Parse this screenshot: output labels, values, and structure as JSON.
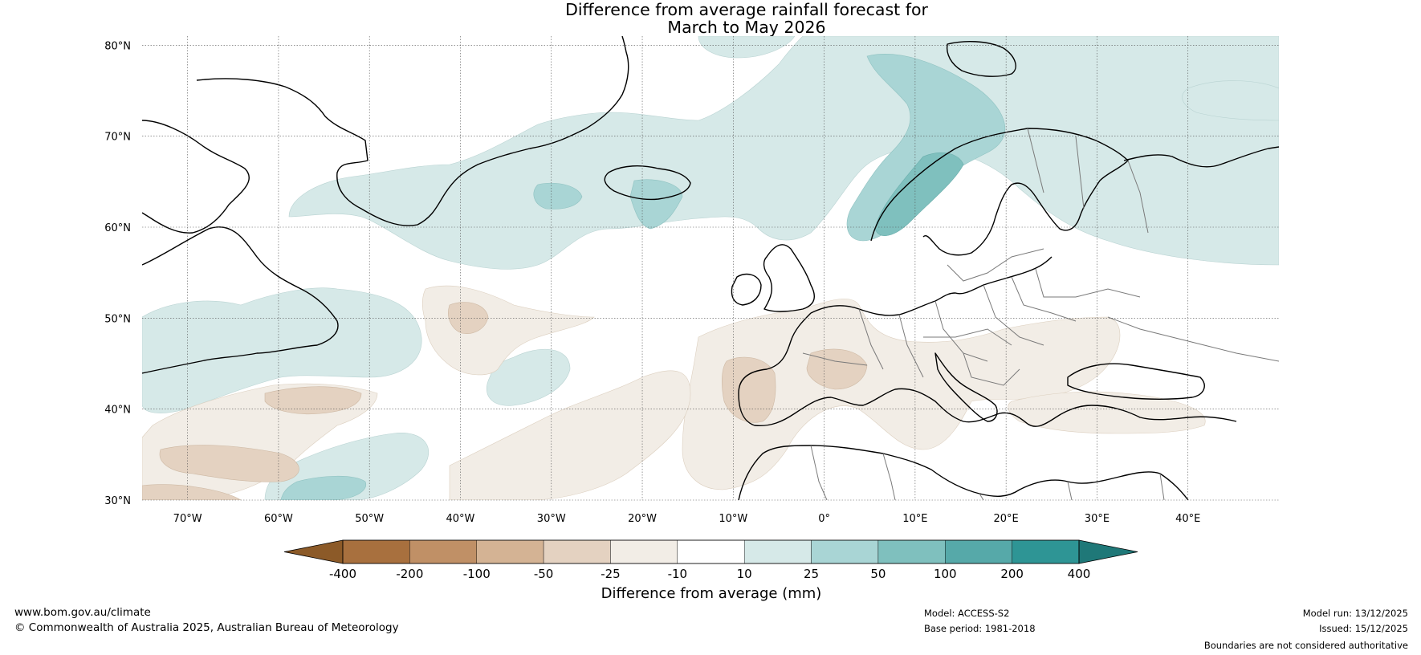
{
  "title": {
    "line1": "Difference from average rainfall forecast for",
    "line2": "March to May 2026"
  },
  "map": {
    "lat_labels": [
      "80°N",
      "70°N",
      "60°N",
      "50°N",
      "40°N",
      "30°N"
    ],
    "lon_labels": [
      "70°W",
      "60°W",
      "50°W",
      "40°W",
      "30°W",
      "20°W",
      "10°W",
      "0°",
      "10°E",
      "20°E",
      "30°E",
      "40°E"
    ],
    "lat_range": [
      30,
      81
    ],
    "lon_range": [
      -75,
      50
    ],
    "gridlines": true
  },
  "legend": {
    "title": "Difference from average (mm)",
    "ticks": [
      "-400",
      "-200",
      "-100",
      "-50",
      "-25",
      "-10",
      "10",
      "25",
      "50",
      "100",
      "200",
      "400"
    ],
    "colors": [
      "#8c5a28",
      "#a8703e",
      "#c09066",
      "#d4b394",
      "#e4d2c1",
      "#f2ede6",
      "#ffffff",
      "#d6e9e8",
      "#a9d5d5",
      "#7fc0be",
      "#56a9a9",
      "#2e9595",
      "#1f7878"
    ]
  },
  "footer": {
    "website": "www.bom.gov.au/climate",
    "copyright": "© Commonwealth of Australia 2025, Australian Bureau of Meteorology",
    "model": "Model: ACCESS-S2",
    "base_period": "Base period: 1981-2018",
    "model_run": "Model run: 13/12/2025",
    "issued": "Issued: 15/12/2025",
    "disclaimer": "Boundaries are not considered authoritative"
  }
}
